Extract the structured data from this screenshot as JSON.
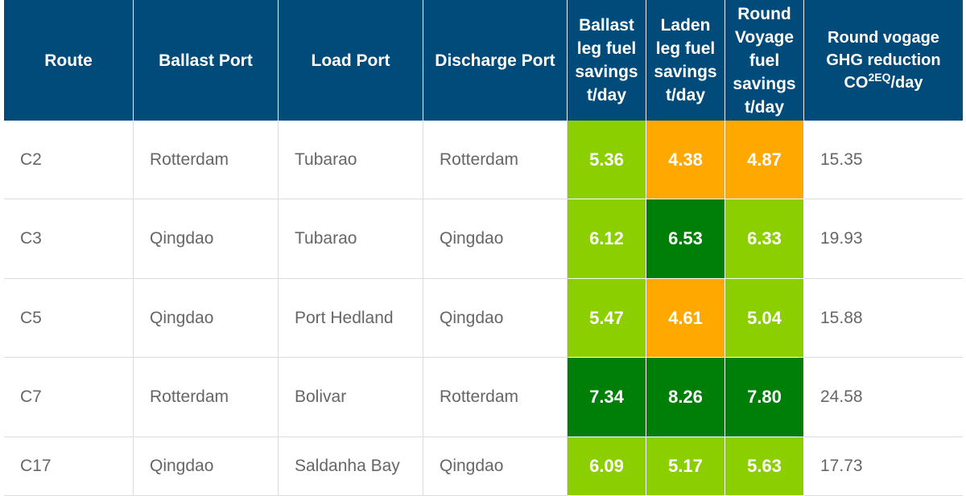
{
  "colors": {
    "header_bg": "#004b7a",
    "lime": "#8ccf00",
    "orange": "#ffa800",
    "dark_green": "#007f08"
  },
  "headers": {
    "route": "Route",
    "ballast_port": "Ballast Port",
    "load_port": "Load Port",
    "discharge_port": "Discharge Port",
    "ballast_leg": "Ballast leg fuel savings t/day",
    "laden_leg": "Laden leg fuel savings t/day",
    "round_voyage": "Round Voyage fuel savings t/day",
    "ghg_line1": "Round vogage",
    "ghg_line2": "GHG reduction",
    "ghg_co": "CO",
    "ghg_sup": "2EQ",
    "ghg_unit": "/day"
  },
  "rows": [
    {
      "route": "C2",
      "ballast": "Rotterdam",
      "load": "Tubarao",
      "discharge": "Rotterdam",
      "ballast_leg": "5.36",
      "laden_leg": "4.38",
      "round": "4.87",
      "ghg": "15.35"
    },
    {
      "route": "C3",
      "ballast": "Qingdao",
      "load": "Tubarao",
      "discharge": "Qingdao",
      "ballast_leg": "6.12",
      "laden_leg": "6.53",
      "round": "6.33",
      "ghg": "19.93"
    },
    {
      "route": "C5",
      "ballast": "Qingdao",
      "load": "Port Hedland",
      "discharge": "Qingdao",
      "ballast_leg": "5.47",
      "laden_leg": "4.61",
      "round": "5.04",
      "ghg": "15.88"
    },
    {
      "route": "C7",
      "ballast": "Rotterdam",
      "load": "Bolivar",
      "discharge": "Rotterdam",
      "ballast_leg": "7.34",
      "laden_leg": "8.26",
      "round": "7.80",
      "ghg": "24.58"
    },
    {
      "route": "C17",
      "ballast": "Qingdao",
      "load": "Saldanha Bay",
      "discharge": "Qingdao",
      "ballast_leg": "6.09",
      "laden_leg": "5.17",
      "round": "5.63",
      "ghg": "17.73"
    }
  ]
}
